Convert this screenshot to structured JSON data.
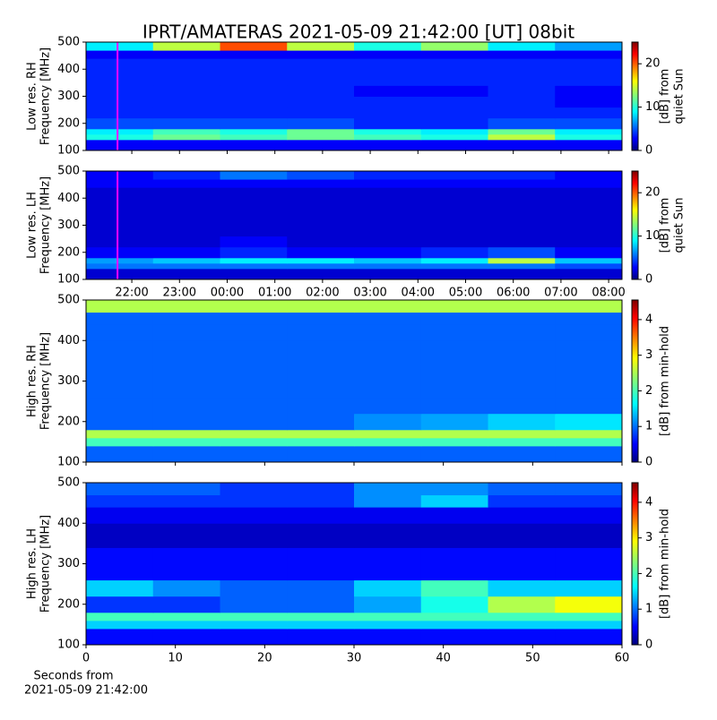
{
  "chart_data": [
    {
      "type": "heatmap",
      "title": "IPRT/AMATERAS 2021-05-09 21:42:00 [UT]   08bit",
      "ylabel": [
        "Low res. RH",
        "Frequency [MHz]"
      ],
      "xlim": [
        21.04,
        32.28
      ],
      "ylim": [
        100,
        500
      ],
      "yticks": [
        100,
        200,
        300,
        400,
        500
      ],
      "colormap": "jet",
      "y_edges": [
        100,
        140,
        160,
        180,
        220,
        260,
        300,
        340,
        400,
        440,
        470,
        500
      ],
      "z": [
        [
          3,
          3,
          3,
          3,
          3,
          3,
          3,
          3
        ],
        [
          10,
          12,
          11,
          12,
          11,
          10,
          14,
          10
        ],
        [
          9,
          11,
          10,
          12,
          10,
          9,
          12,
          9
        ],
        [
          5,
          5,
          5,
          5,
          4,
          4,
          5,
          5
        ],
        [
          4,
          4,
          4,
          4,
          4,
          4,
          4,
          4
        ],
        [
          4,
          4,
          4,
          4,
          4,
          4,
          4,
          3
        ],
        [
          4,
          4,
          4,
          4,
          3,
          3,
          4,
          3
        ],
        [
          4,
          4,
          4,
          4,
          4,
          4,
          4,
          4
        ],
        [
          4,
          4,
          4,
          4,
          4,
          4,
          4,
          4
        ],
        [
          3,
          3,
          3,
          3,
          3,
          3,
          3,
          3
        ],
        [
          9,
          14,
          20,
          14,
          10,
          13,
          9,
          7
        ]
      ],
      "colorbar": {
        "label": [
          "[dB] from",
          "quiet Sun"
        ],
        "lim": [
          0,
          25
        ],
        "ticks": [
          0,
          10,
          20
        ]
      },
      "marker": {
        "x": 21.7,
        "color": "#ff00ff"
      }
    },
    {
      "type": "heatmap",
      "ylabel": [
        "Low res. LH",
        "Frequency [MHz]"
      ],
      "xlim": [
        21.04,
        32.28
      ],
      "xticks": [
        {
          "value": 22,
          "label": "22:00"
        },
        {
          "value": 23,
          "label": "23:00"
        },
        {
          "value": 24,
          "label": "00:00"
        },
        {
          "value": 25,
          "label": "01:00"
        },
        {
          "value": 26,
          "label": "02:00"
        },
        {
          "value": 27,
          "label": "03:00"
        },
        {
          "value": 28,
          "label": "04:00"
        },
        {
          "value": 29,
          "label": "05:00"
        },
        {
          "value": 30,
          "label": "06:00"
        },
        {
          "value": 31,
          "label": "07:00"
        },
        {
          "value": 32,
          "label": "08:00"
        }
      ],
      "ylim": [
        100,
        500
      ],
      "yticks": [
        100,
        200,
        300,
        400,
        500
      ],
      "colormap": "jet",
      "y_edges": [
        100,
        140,
        160,
        180,
        220,
        260,
        300,
        340,
        400,
        440,
        470,
        500
      ],
      "z": [
        [
          2,
          2,
          2,
          2,
          2,
          2,
          2,
          2
        ],
        [
          6,
          6,
          6,
          6,
          6,
          6,
          6,
          5
        ],
        [
          7,
          8,
          9,
          9,
          8,
          9,
          14,
          8
        ],
        [
          3,
          3,
          4,
          3,
          3,
          4,
          5,
          3
        ],
        [
          2,
          2,
          3,
          2,
          2,
          2,
          2,
          2
        ],
        [
          2,
          2,
          2,
          2,
          2,
          2,
          2,
          2
        ],
        [
          2,
          2,
          2,
          2,
          2,
          2,
          2,
          2
        ],
        [
          2,
          2,
          2,
          2,
          2,
          2,
          2,
          2
        ],
        [
          2,
          2,
          2,
          2,
          2,
          2,
          2,
          2
        ],
        [
          3,
          3,
          3,
          3,
          3,
          3,
          3,
          3
        ],
        [
          3,
          4,
          6,
          5,
          4,
          4,
          4,
          3
        ]
      ],
      "colorbar": {
        "label": [
          "[dB] from",
          "quiet Sun"
        ],
        "lim": [
          0,
          25
        ],
        "ticks": [
          0,
          10,
          20
        ]
      },
      "marker": {
        "x": 21.7,
        "color": "#ff00ff"
      }
    },
    {
      "type": "heatmap",
      "ylabel": [
        "High res. RH",
        "Frequency [MHz]"
      ],
      "xlim": [
        0,
        60
      ],
      "ylim": [
        100,
        500
      ],
      "yticks": [
        100,
        200,
        300,
        400,
        500
      ],
      "colormap": "jet",
      "y_edges": [
        100,
        140,
        160,
        180,
        220,
        260,
        300,
        340,
        400,
        440,
        470,
        500
      ],
      "z": [
        [
          1,
          1,
          1,
          1,
          1,
          1,
          1,
          1
        ],
        [
          2,
          2,
          2,
          2,
          2,
          2,
          2,
          2
        ],
        [
          2.5,
          2.5,
          2.5,
          2.5,
          2.5,
          2.5,
          2.5,
          2.5
        ],
        [
          1,
          1,
          1,
          1,
          1.2,
          1.3,
          1.5,
          1.6
        ],
        [
          1,
          1,
          1,
          1,
          1,
          1,
          1,
          1
        ],
        [
          1,
          1,
          1,
          1,
          1,
          1,
          1,
          1
        ],
        [
          1,
          1,
          1,
          1,
          1,
          1,
          1,
          1
        ],
        [
          1,
          1,
          1,
          1,
          1,
          1,
          1,
          1
        ],
        [
          1,
          1,
          1,
          1,
          1,
          1,
          1,
          1
        ],
        [
          1,
          1,
          1,
          1,
          1,
          1,
          1,
          1
        ],
        [
          2.5,
          2.5,
          2.5,
          2.5,
          2.5,
          2.5,
          2.5,
          2.5
        ]
      ],
      "colorbar": {
        "label": [
          "[dB] from min-hold"
        ],
        "lim": [
          0,
          4.55
        ],
        "ticks": [
          0,
          1,
          2,
          3,
          4
        ]
      }
    },
    {
      "type": "heatmap",
      "ylabel": [
        "High res. LH",
        "Frequency [MHz]"
      ],
      "xlabel": [
        "Seconds from",
        "2021-05-09 21:42:00"
      ],
      "xlim": [
        0,
        60
      ],
      "xticks": [
        0,
        10,
        20,
        30,
        40,
        50,
        60
      ],
      "ylim": [
        100,
        500
      ],
      "yticks": [
        100,
        200,
        300,
        400,
        500
      ],
      "colormap": "jet",
      "y_edges": [
        100,
        140,
        160,
        180,
        220,
        260,
        300,
        340,
        400,
        440,
        470,
        500
      ],
      "z": [
        [
          0.6,
          0.6,
          0.6,
          0.6,
          0.6,
          0.6,
          0.6,
          0.6
        ],
        [
          1.5,
          1.5,
          1.5,
          1.5,
          1.5,
          1.5,
          1.5,
          1.5
        ],
        [
          2,
          2,
          2,
          2,
          2,
          2,
          2,
          2
        ],
        [
          0.8,
          0.8,
          1,
          1,
          1.3,
          1.8,
          2.5,
          2.8
        ],
        [
          1.5,
          1.2,
          1,
          1,
          1.5,
          2,
          1.5,
          1.5
        ],
        [
          0.6,
          0.6,
          0.6,
          0.6,
          0.6,
          0.6,
          0.6,
          0.6
        ],
        [
          0.6,
          0.6,
          0.6,
          0.6,
          0.6,
          0.6,
          0.6,
          0.6
        ],
        [
          0.3,
          0.3,
          0.3,
          0.3,
          0.3,
          0.3,
          0.3,
          0.3
        ],
        [
          0.5,
          0.5,
          0.5,
          0.5,
          0.5,
          0.5,
          0.5,
          0.5
        ],
        [
          0.8,
          0.8,
          0.8,
          0.8,
          1.2,
          1.5,
          0.8,
          0.8
        ],
        [
          1,
          1,
          0.8,
          0.8,
          1.2,
          1.2,
          1,
          1
        ]
      ],
      "colorbar": {
        "label": [
          "[dB] from min-hold"
        ],
        "lim": [
          0,
          4.55
        ],
        "ticks": [
          0,
          1,
          2,
          3,
          4
        ]
      }
    }
  ]
}
